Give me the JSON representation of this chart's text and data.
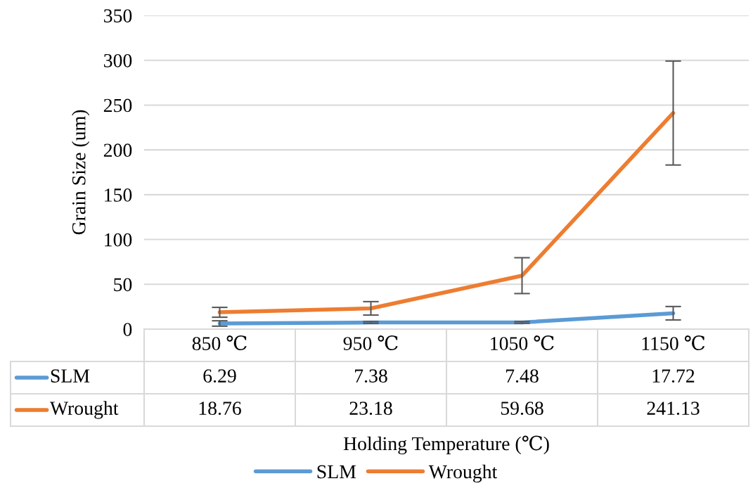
{
  "chart_data": {
    "type": "line",
    "xlabel": "Holding Temperature (℃)",
    "ylabel": "Grain Size (um)",
    "categories": [
      "850 ℃",
      "950 ℃",
      "1050 ℃",
      "1150 ℃"
    ],
    "series": [
      {
        "name": "SLM",
        "color": "#5b9bd5",
        "values": [
          6.29,
          7.38,
          7.48,
          17.72
        ],
        "errors": [
          3,
          1,
          1,
          7.5
        ]
      },
      {
        "name": "Wrought",
        "color": "#ed7d31",
        "values": [
          18.76,
          23.18,
          59.68,
          241.13
        ],
        "errors": [
          5.5,
          7.5,
          20,
          58
        ]
      }
    ],
    "ylim": [
      0,
      350
    ],
    "yticks": [
      0,
      50,
      100,
      150,
      200,
      250,
      300,
      350
    ],
    "grid": "y",
    "legend": "bottom",
    "data_labels": true,
    "marker": "none",
    "line_style": "solid"
  }
}
